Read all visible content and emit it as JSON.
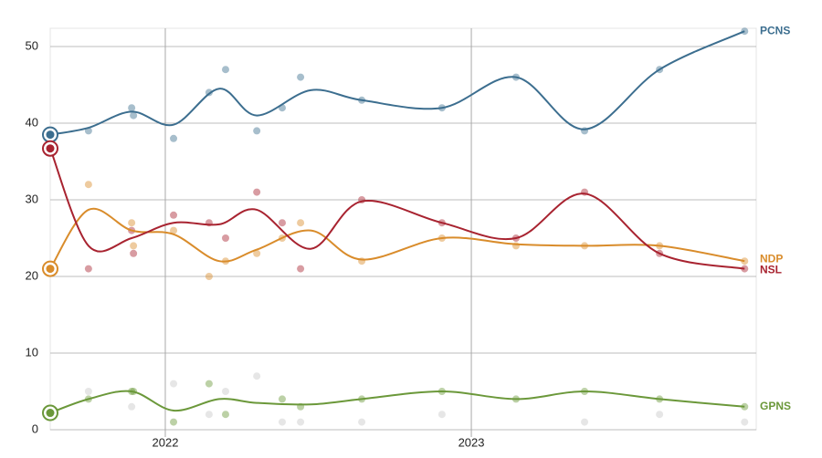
{
  "chart_data": {
    "type": "line",
    "x": [
      2021.749,
      2021.89,
      2021.896,
      2022.027,
      2022.143,
      2022.197,
      2022.299,
      2022.382,
      2022.442,
      2022.642,
      2022.904,
      2023.146,
      2023.37,
      2023.615,
      2023.893
    ],
    "trend_x": [
      2021.624,
      2021.749,
      2021.89,
      2022.027,
      2022.176,
      2022.299,
      2022.475,
      2022.642,
      2022.904,
      2023.146,
      2023.37,
      2023.615,
      2023.893
    ],
    "series": [
      {
        "name": "PCNS",
        "color": "#3c6e8f",
        "values": [
          39,
          42,
          41,
          38,
          44,
          47,
          39,
          42,
          46,
          43,
          42,
          46,
          39,
          47,
          52
        ],
        "trend": [
          38.5,
          39.4,
          41.5,
          39.8,
          44.5,
          41,
          44.3,
          43,
          42,
          46,
          39.2,
          47,
          52
        ]
      },
      {
        "name": "NDP",
        "color": "#d98c2b",
        "values": [
          32,
          27,
          24,
          26,
          20,
          22,
          23,
          25,
          27,
          22,
          25,
          24,
          24,
          24,
          22
        ],
        "trend": [
          21,
          28.7,
          26,
          25.5,
          22,
          23.5,
          26,
          22.2,
          25,
          24.2,
          24,
          24,
          22
        ]
      },
      {
        "name": "NSL",
        "color": "#a82330",
        "values": [
          21,
          26,
          23,
          28,
          27,
          25,
          31,
          27,
          21,
          30,
          27,
          25,
          31,
          23,
          21
        ],
        "trend": [
          36.7,
          24,
          25,
          27,
          26.8,
          28.7,
          23.6,
          29.8,
          27,
          25,
          30.8,
          23,
          21
        ]
      },
      {
        "name": "GPNS",
        "color": "#6b983a",
        "values": [
          4,
          5,
          5,
          1,
          6,
          2,
          null,
          4,
          3,
          4,
          5,
          4,
          5,
          4,
          3
        ],
        "trend": [
          2.2,
          4,
          5,
          2.5,
          4,
          3.5,
          3.3,
          4,
          5,
          4,
          5,
          4,
          3
        ]
      },
      {
        "color": "#c8c8c8",
        "values": [
          5,
          3,
          null,
          6,
          2,
          5,
          7,
          1,
          1,
          1,
          2,
          null,
          1,
          2,
          1
        ]
      }
    ],
    "xlim": [
      2021.624,
      2023.931
    ],
    "xticks": [
      2022,
      2023
    ],
    "ylim": [
      0,
      50
    ],
    "yticks": [
      0,
      10,
      20,
      30,
      40,
      50
    ],
    "grid": true
  }
}
